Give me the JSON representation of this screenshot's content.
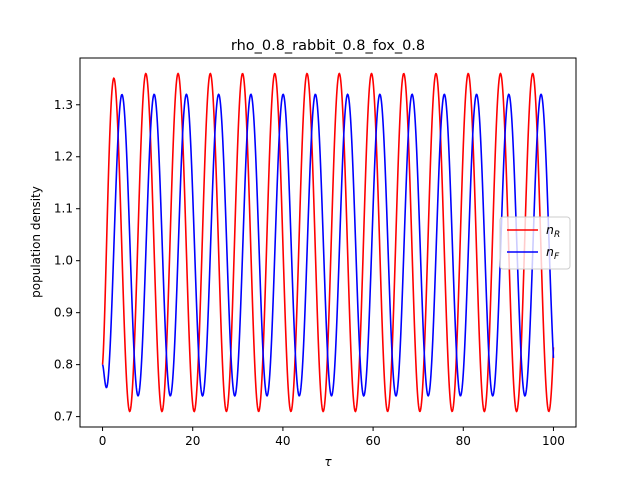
{
  "chart_data": {
    "type": "line",
    "title": "rho_0.8_rabbit_0.8_fox_0.8",
    "xlabel": "τ",
    "ylabel": "population density",
    "xlim": [
      -5,
      105
    ],
    "ylim": [
      0.68,
      1.39
    ],
    "xticks": [
      0,
      20,
      40,
      60,
      80,
      100
    ],
    "yticks": [
      0.7,
      0.8,
      0.9,
      1.0,
      1.1,
      1.2,
      1.3
    ],
    "xtick_labels": [
      "0",
      "20",
      "40",
      "60",
      "80",
      "100"
    ],
    "ytick_labels": [
      "0.7",
      "0.8",
      "0.9",
      "1.0",
      "1.1",
      "1.2",
      "1.3"
    ],
    "grid": false,
    "legend_position": "center-right",
    "series": [
      {
        "name": "n_R",
        "legend_main": "n",
        "legend_sub": "R",
        "color": "#ff0000",
        "start": 0.8,
        "max": 1.36,
        "min": 0.71,
        "period": 7.15,
        "first_peak": 2.45,
        "x_start": 0,
        "x_end": 100
      },
      {
        "name": "n_F",
        "legend_main": "n",
        "legend_sub": "F",
        "color": "#0000ff",
        "start": 0.8,
        "max": 1.32,
        "min": 0.74,
        "period": 7.15,
        "first_peak": 4.3,
        "x_start": 0,
        "x_end": 100
      }
    ]
  }
}
